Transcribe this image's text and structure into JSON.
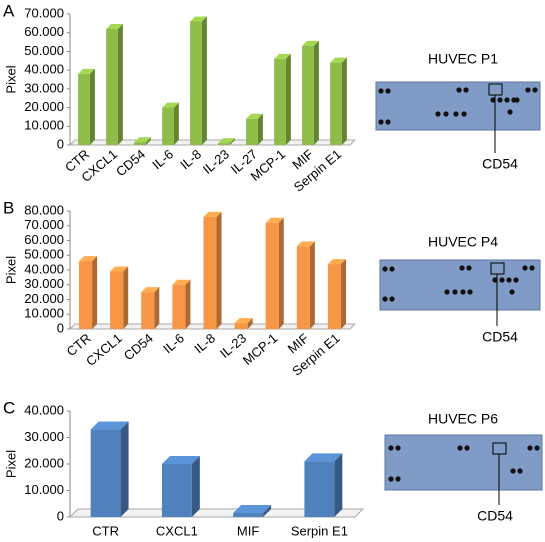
{
  "chart_data": [
    {
      "type": "bar",
      "panel_label": "A",
      "y_label": "Pixel",
      "color": "#8fbc48",
      "categories": [
        "CTR",
        "CXCL1",
        "CD54",
        "IL-6",
        "IL-8",
        "IL-23",
        "IL-27",
        "MCP-1",
        "MIF",
        "Serpin E1"
      ],
      "values": [
        38000,
        62000,
        1500,
        20000,
        66000,
        1000,
        14000,
        46000,
        53000,
        44000
      ],
      "ylim": [
        0,
        70000
      ],
      "yticks": [
        0,
        {
          "value": 10000,
          "label": "10.000"
        },
        {
          "value": 20000,
          "label": "20.000"
        },
        {
          "value": 30000,
          "label": "30.000"
        },
        {
          "value": 40000,
          "label": "40.000"
        },
        {
          "value": 50000,
          "label": "50.000"
        },
        {
          "value": 60000,
          "label": "60.000"
        },
        {
          "value": 70000,
          "label": "70.000"
        }
      ],
      "image_title": "HUVEC P1",
      "image_annotation": "CD54"
    },
    {
      "type": "bar",
      "panel_label": "B",
      "y_label": "Pixel",
      "color": "#f79646",
      "categories": [
        "CTR",
        "CXCL1",
        "CD54",
        "IL-6",
        "IL-8",
        "IL-23",
        "MCP-1",
        "MIF",
        "Serpin E1"
      ],
      "values": [
        46000,
        39000,
        25000,
        30000,
        76000,
        4000,
        72000,
        56000,
        44000
      ],
      "ylim": [
        0,
        80000
      ],
      "yticks": [
        0,
        {
          "value": 10000,
          "label": "10.000"
        },
        {
          "value": 20000,
          "label": "20.000"
        },
        {
          "value": 30000,
          "label": "30.000"
        },
        {
          "value": 40000,
          "label": "40.000"
        },
        {
          "value": 50000,
          "label": "50.000"
        },
        {
          "value": 60000,
          "label": "60.000"
        },
        {
          "value": 70000,
          "label": "70.000"
        },
        {
          "value": 80000,
          "label": "80.000"
        }
      ],
      "image_title": "HUVEC P4",
      "image_annotation": "CD54"
    },
    {
      "type": "bar",
      "panel_label": "C",
      "y_label": "Pixel",
      "color": "#4f81bd",
      "categories": [
        "CTR",
        "CXCL1",
        "MIF",
        "Serpin E1"
      ],
      "values": [
        33000,
        20000,
        1500,
        21000
      ],
      "ylim": [
        0,
        40000
      ],
      "yticks": [
        0,
        {
          "value": 10000,
          "label": "10.000"
        },
        {
          "value": 20000,
          "label": "20.000"
        },
        {
          "value": 30000,
          "label": "30.000"
        },
        {
          "value": 40000,
          "label": "40.000"
        }
      ],
      "image_title": "HUVEC P6",
      "image_annotation": "CD54"
    }
  ]
}
